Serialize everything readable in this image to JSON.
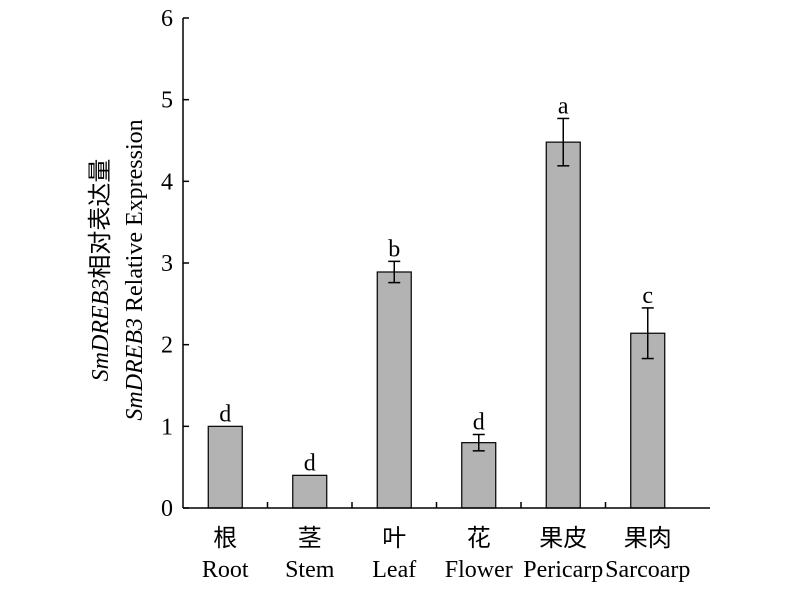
{
  "chart_data": {
    "type": "bar",
    "categories": [
      {
        "zh": "根",
        "en": "Root"
      },
      {
        "zh": "茎",
        "en": "Stem"
      },
      {
        "zh": "叶",
        "en": "Leaf"
      },
      {
        "zh": "花",
        "en": "Flower"
      },
      {
        "zh": "果皮",
        "en": "Pericarp"
      },
      {
        "zh": "果肉",
        "en": "Sarcoarp"
      }
    ],
    "values": [
      1.0,
      0.4,
      2.89,
      0.8,
      4.48,
      2.14
    ],
    "errors": [
      0,
      0,
      0.13,
      0.1,
      0.29,
      0.31
    ],
    "significance": [
      "d",
      "d",
      "b",
      "d",
      "a",
      "c"
    ],
    "ylabel": {
      "line1_italic": "SmDREB3",
      "line1_rest": "相对表达量",
      "line2_italic": "SmDREB3",
      "line2_rest": " Relative Expression"
    },
    "ylim": [
      0,
      6
    ],
    "yticks": [
      "0",
      "1",
      "2",
      "3",
      "4",
      "5",
      "6"
    ],
    "grid": false,
    "bar_color": "#b3b3b3"
  }
}
